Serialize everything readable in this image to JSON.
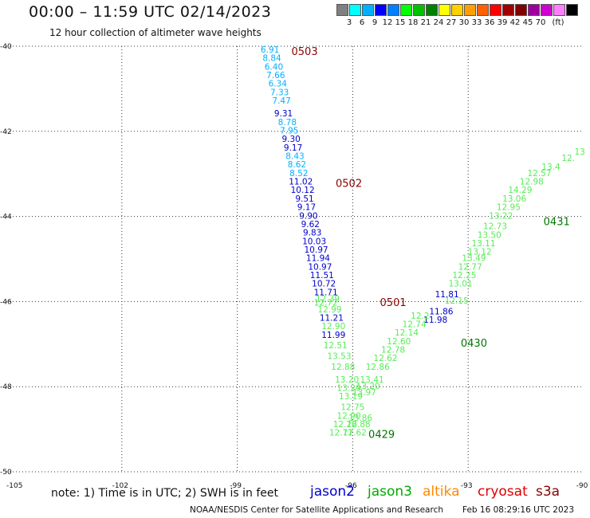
{
  "header": {
    "title": "00:00 – 11:59 UTC 02/14/2023",
    "subtitle": "12 hour collection of altimeter wave heights"
  },
  "colorbar": {
    "colors": [
      "#808080",
      "#00ffff",
      "#00b0ff",
      "#0000ff",
      "#0080ff",
      "#00ff00",
      "#00c000",
      "#008000",
      "#ffff00",
      "#ffd000",
      "#ffa000",
      "#ff6000",
      "#ff0000",
      "#a00000",
      "#800000",
      "#a000a0",
      "#d000d0",
      "#ff80ff",
      "#000000"
    ],
    "labels": [
      "3",
      "6",
      "9",
      "12",
      "15",
      "18",
      "21",
      "24",
      "27",
      "30",
      "33",
      "36",
      "39",
      "42",
      "45",
      "70",
      "(ft)"
    ]
  },
  "footer": {
    "note": "note:  1) Time is in UTC;  2) SWH is in feet",
    "legend": [
      {
        "name": "jason2",
        "color": "#0000cc"
      },
      {
        "name": "jason3",
        "color": "#00aa00"
      },
      {
        "name": "altika",
        "color": "#ff8800"
      },
      {
        "name": "cryosat",
        "color": "#dd0000"
      },
      {
        "name": "s3a",
        "color": "#880000"
      }
    ],
    "credit": "NOAA/NESDIS Center for Satellite Applications and Research",
    "timestamp": "Feb 16 08:29:16 UTC 2023"
  },
  "chart_data": {
    "type": "scatter",
    "title": "00:00 – 11:59 UTC 02/14/2023",
    "subtitle": "12 hour collection of altimeter wave heights",
    "xlabel": "",
    "ylabel": "",
    "xlim": [
      -105,
      -90
    ],
    "ylim": [
      -50,
      -40
    ],
    "x_ticks": [
      "-105",
      "-102",
      "-99",
      "-96",
      "-93",
      "-90"
    ],
    "y_ticks": [
      "-40",
      "-42",
      "-44",
      "-46",
      "-48",
      "-50"
    ],
    "grid": "dotted",
    "series": [
      {
        "name": "",
        "color": "#00b0ff",
        "points": [
          {
            "x": -98.15,
            "y": -40.15,
            "v": "6.91"
          },
          {
            "x": -98.1,
            "y": -40.35,
            "v": "8.84"
          },
          {
            "x": -98.05,
            "y": -40.55,
            "v": "6.40"
          },
          {
            "x": -98.0,
            "y": -40.75,
            "v": "7.66"
          },
          {
            "x": -97.95,
            "y": -40.95,
            "v": "6.34"
          },
          {
            "x": -97.9,
            "y": -41.15,
            "v": "7.33"
          },
          {
            "x": -97.85,
            "y": -41.35,
            "v": "7.47"
          },
          {
            "x": -97.7,
            "y": -41.85,
            "v": "8.78"
          },
          {
            "x": -97.65,
            "y": -42.05,
            "v": "7.95"
          },
          {
            "x": -97.5,
            "y": -42.65,
            "v": "8.43"
          },
          {
            "x": -97.45,
            "y": -42.85,
            "v": "8.62"
          },
          {
            "x": -97.4,
            "y": -43.05,
            "v": "8.52"
          }
        ]
      },
      {
        "name": "",
        "color": "#0000cc",
        "points": [
          {
            "x": -97.8,
            "y": -41.65,
            "v": "9.31"
          },
          {
            "x": -97.6,
            "y": -42.25,
            "v": "9.30"
          },
          {
            "x": -97.55,
            "y": -42.45,
            "v": "9.17"
          },
          {
            "x": -97.35,
            "y": -43.25,
            "v": "11.02"
          },
          {
            "x": -97.3,
            "y": -43.45,
            "v": "10.12"
          },
          {
            "x": -97.25,
            "y": -43.65,
            "v": "9.51"
          },
          {
            "x": -97.2,
            "y": -43.85,
            "v": "9.17"
          },
          {
            "x": -97.15,
            "y": -44.05,
            "v": "9.90"
          },
          {
            "x": -97.1,
            "y": -44.25,
            "v": "9.62"
          },
          {
            "x": -97.05,
            "y": -44.45,
            "v": "9.83"
          },
          {
            "x": -97.0,
            "y": -44.65,
            "v": "10.03"
          },
          {
            "x": -96.95,
            "y": -44.85,
            "v": "10.97"
          },
          {
            "x": -96.9,
            "y": -45.05,
            "v": "11.94"
          },
          {
            "x": -96.85,
            "y": -45.25,
            "v": "10.97"
          },
          {
            "x": -96.8,
            "y": -45.45,
            "v": "11.51"
          },
          {
            "x": -96.75,
            "y": -45.65,
            "v": "10.72"
          },
          {
            "x": -96.7,
            "y": -45.85,
            "v": "11.71"
          },
          {
            "x": -96.55,
            "y": -46.45,
            "v": "11.21"
          },
          {
            "x": -96.5,
            "y": -46.85,
            "v": "11.99"
          },
          {
            "x": -93.55,
            "y": -45.9,
            "v": "11.81"
          },
          {
            "x": -93.7,
            "y": -46.3,
            "v": "11.86"
          },
          {
            "x": -93.85,
            "y": -46.5,
            "v": "11.98"
          }
        ]
      },
      {
        "name": "",
        "color": "#55ee55",
        "points": [
          {
            "x": -96.65,
            "y": -46.0,
            "v": "12.39"
          },
          {
            "x": -96.7,
            "y": -46.1,
            "v": "12.72"
          },
          {
            "x": -96.6,
            "y": -46.25,
            "v": "12.99"
          },
          {
            "x": -96.5,
            "y": -46.65,
            "v": "12.90"
          },
          {
            "x": -96.45,
            "y": -47.1,
            "v": "12.51"
          },
          {
            "x": -96.35,
            "y": -47.35,
            "v": "13.53"
          },
          {
            "x": -96.25,
            "y": -47.6,
            "v": "12.88"
          },
          {
            "x": -96.15,
            "y": -47.9,
            "v": "13.20"
          },
          {
            "x": -96.1,
            "y": -48.1,
            "v": "13.20"
          },
          {
            "x": -96.05,
            "y": -48.3,
            "v": "13.19"
          },
          {
            "x": -96.0,
            "y": -48.55,
            "v": "12.75"
          },
          {
            "x": -96.1,
            "y": -48.75,
            "v": "12.90"
          },
          {
            "x": -96.2,
            "y": -48.95,
            "v": "12.26"
          },
          {
            "x": -96.3,
            "y": -49.15,
            "v": "12.71"
          },
          {
            "x": -95.95,
            "y": -49.15,
            "v": "12.62"
          },
          {
            "x": -95.85,
            "y": -48.95,
            "v": "12.88"
          },
          {
            "x": -95.8,
            "y": -48.8,
            "v": "13.86"
          },
          {
            "x": -95.7,
            "y": -48.2,
            "v": "13.97"
          },
          {
            "x": -95.6,
            "y": -48.05,
            "v": "13.20"
          },
          {
            "x": -95.5,
            "y": -47.9,
            "v": "13.41"
          },
          {
            "x": -95.35,
            "y": -47.6,
            "v": "12.86"
          },
          {
            "x": -95.15,
            "y": -47.4,
            "v": "12.62"
          },
          {
            "x": -94.95,
            "y": -47.2,
            "v": "12.78"
          },
          {
            "x": -94.8,
            "y": -47.0,
            "v": "12.60"
          },
          {
            "x": -94.6,
            "y": -46.8,
            "v": "12.14"
          },
          {
            "x": -94.4,
            "y": -46.6,
            "v": "12.74"
          },
          {
            "x": -94.25,
            "y": -46.4,
            "v": "12.2"
          },
          {
            "x": -93.3,
            "y": -46.05,
            "v": "12.15"
          },
          {
            "x": -93.2,
            "y": -45.65,
            "v": "13.01"
          },
          {
            "x": -93.1,
            "y": -45.45,
            "v": "12.25"
          },
          {
            "x": -92.95,
            "y": -45.25,
            "v": "12.77"
          },
          {
            "x": -92.85,
            "y": -45.05,
            "v": "13.49"
          },
          {
            "x": -92.7,
            "y": -44.9,
            "v": "13.12"
          },
          {
            "x": -92.6,
            "y": -44.7,
            "v": "13.11"
          },
          {
            "x": -92.45,
            "y": -44.5,
            "v": "13.50"
          },
          {
            "x": -92.3,
            "y": -44.3,
            "v": "12.73"
          },
          {
            "x": -92.15,
            "y": -44.05,
            "v": "13.22"
          },
          {
            "x": -91.95,
            "y": -43.85,
            "v": "12.95"
          },
          {
            "x": -91.8,
            "y": -43.65,
            "v": "13.06"
          },
          {
            "x": -91.65,
            "y": -43.45,
            "v": "14.29"
          },
          {
            "x": -91.35,
            "y": -43.25,
            "v": "12.98"
          },
          {
            "x": -91.15,
            "y": -43.05,
            "v": "12.57"
          },
          {
            "x": -90.85,
            "y": -42.9,
            "v": "13.4"
          },
          {
            "x": -90.4,
            "y": -42.7,
            "v": "12."
          },
          {
            "x": -90.1,
            "y": -42.55,
            "v": "13"
          }
        ]
      }
    ],
    "time_labels": [
      {
        "x": -97.25,
        "y": -40.15,
        "text": "0503",
        "color": "#8b0000"
      },
      {
        "x": -96.1,
        "y": -43.25,
        "text": "0502",
        "color": "#8b0000"
      },
      {
        "x": -94.95,
        "y": -46.05,
        "text": "0501",
        "color": "#8b0000"
      },
      {
        "x": -95.25,
        "y": -49.15,
        "text": "0429",
        "color": "#007700"
      },
      {
        "x": -92.85,
        "y": -47.0,
        "text": "0430",
        "color": "#007700"
      },
      {
        "x": -90.7,
        "y": -44.15,
        "text": "0431",
        "color": "#007700"
      }
    ]
  }
}
